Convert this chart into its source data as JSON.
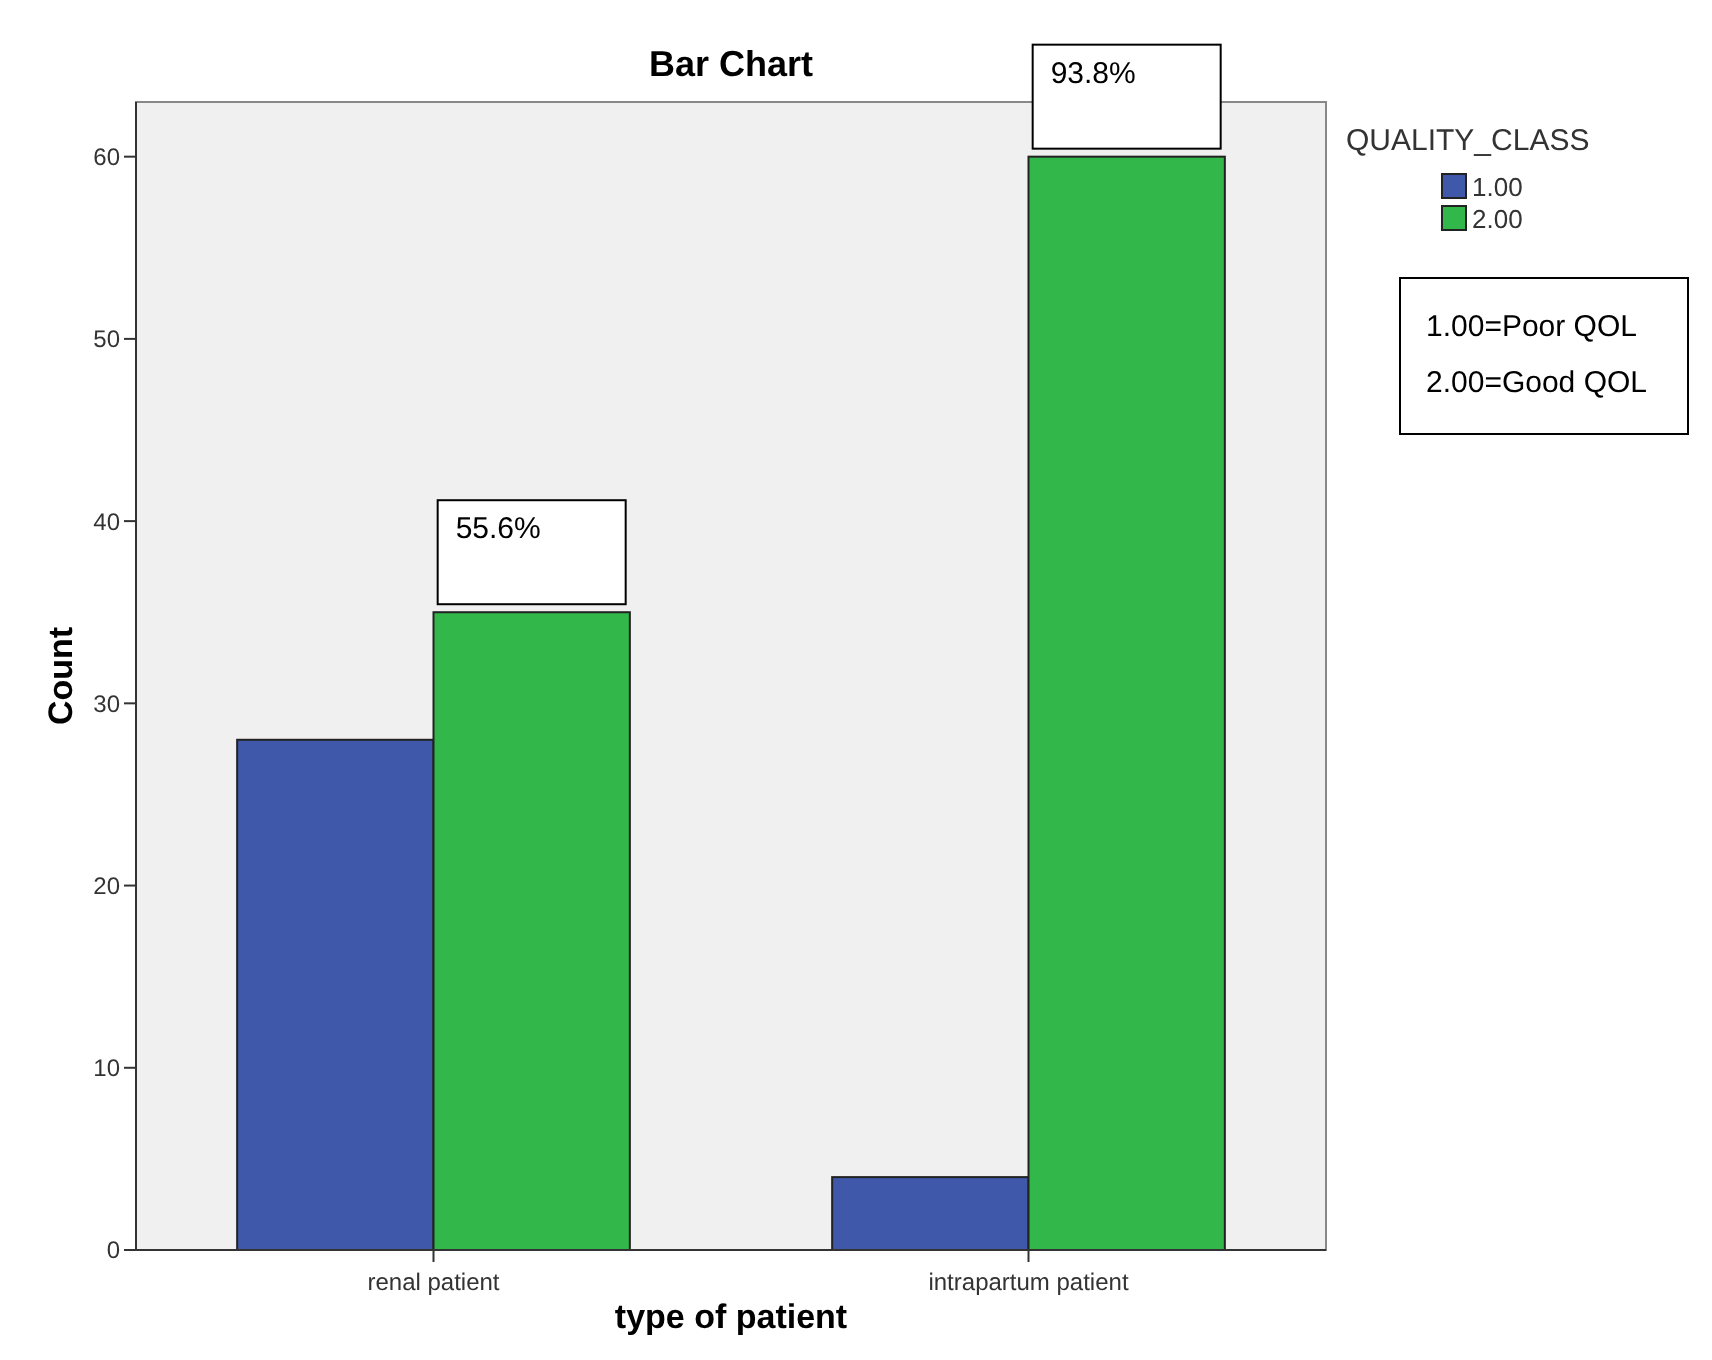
{
  "chart_data": {
    "type": "bar",
    "title": "Bar Chart",
    "xlabel": "type of patient",
    "ylabel": "Count",
    "legend_title": "QUALITY_CLASS",
    "categories": [
      "renal patient",
      "intrapartum patient"
    ],
    "series": [
      {
        "name": "1.00",
        "color": "#3f58aa",
        "values": [
          28,
          4
        ]
      },
      {
        "name": "2.00",
        "color": "#31b74a",
        "values": [
          35,
          60
        ]
      }
    ],
    "ylim": [
      0,
      63
    ],
    "yticks": [
      0,
      10,
      20,
      30,
      40,
      50,
      60
    ],
    "grid": false,
    "legend": "top right",
    "annotations": [
      "55.6%",
      "93.8%",
      "1.00=Poor QOL",
      "2.00=Good QOL"
    ]
  }
}
